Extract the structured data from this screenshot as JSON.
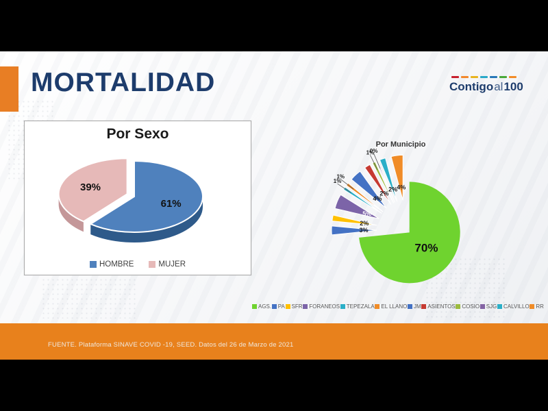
{
  "slide": {
    "title": "MORTALIDAD",
    "logo": {
      "part1": "Contigo",
      "part2": "al",
      "part3": "100",
      "dash_colors": [
        "#C8202E",
        "#F2882C",
        "#E8B420",
        "#28A8C8",
        "#2878B8",
        "#48A838",
        "#F28C28"
      ]
    },
    "footer": "FUENTE. Plataforma SINAVE COVID -19, SEED. Datos del 26 de Marzo de 2021"
  },
  "theme": {
    "accent_orange": "#E8811C",
    "navy_title": "#1D3C6C",
    "black_bars": "#000000"
  },
  "chart_data": [
    {
      "type": "pie",
      "title": "Por Sexo",
      "style": "3d-pie",
      "legend_position": "bottom",
      "slices": [
        {
          "label": "HOMBRE",
          "value": 61,
          "display": "61%",
          "color": "#4F81BD",
          "side_color": "#2E5A8A",
          "exploded": false
        },
        {
          "label": "MUJER",
          "value": 39,
          "display": "39%",
          "color": "#E6B9B8",
          "side_color": "#C49799",
          "exploded": true
        }
      ]
    },
    {
      "type": "pie",
      "title": "Por Municipio",
      "style": "exploded-pie",
      "legend_position": "bottom",
      "slices": [
        {
          "label": "AGS.",
          "value": 70,
          "display": "70%",
          "color": "#6FD32F"
        },
        {
          "label": "PA",
          "value": 3,
          "display": "3%",
          "color": "#4472C4"
        },
        {
          "label": "SFR",
          "value": 2,
          "display": "2%",
          "color": "#FFC000"
        },
        {
          "label": "FORANEOS",
          "value": 5,
          "display": "5%",
          "color": "#7C64A8",
          "text": "#FFFFFF"
        },
        {
          "label": "TEPEZALA",
          "value": 1,
          "display": "1%",
          "color": "#2BAFC8"
        },
        {
          "label": "EL LLANO",
          "value": 1,
          "display": "1%",
          "color": "#F08C28"
        },
        {
          "label": "JM",
          "value": 4,
          "display": "4%",
          "color": "#4472C4"
        },
        {
          "label": "ASIENTOS",
          "value": 2,
          "display": "2%",
          "color": "#C63A32"
        },
        {
          "label": "COSIO",
          "value": 1,
          "display": "1%",
          "color": "#9CBB3F"
        },
        {
          "label": "SJG",
          "value": 0,
          "display": "0%",
          "color": "#8464A4"
        },
        {
          "label": "CALVILLO",
          "value": 2,
          "display": "2%",
          "color": "#2BAFC8"
        },
        {
          "label": "RR",
          "value": 4,
          "display": "4%",
          "color": "#F08C28"
        }
      ]
    }
  ]
}
